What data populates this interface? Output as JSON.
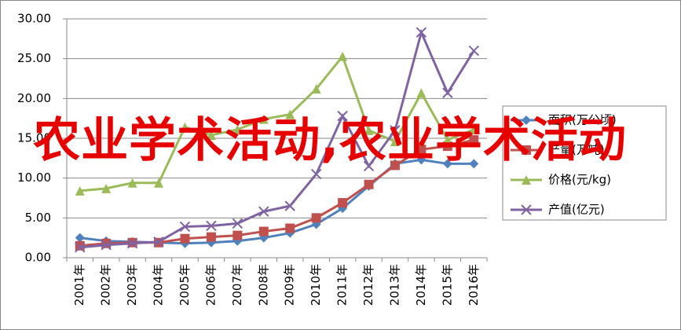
{
  "chart_data": {
    "type": "line",
    "categories": [
      "2001年",
      "2002年",
      "2003年",
      "2004年",
      "2005年",
      "2006年",
      "2007年",
      "2008年",
      "2009年",
      "2010年",
      "2011年",
      "2012年",
      "2013年",
      "2014年",
      "2015年",
      "2016年"
    ],
    "series": [
      {
        "name": "面积(万公顷)",
        "color": "#4f81bd",
        "marker": "diamond",
        "values": [
          2.5,
          2.1,
          2.0,
          1.9,
          1.8,
          1.9,
          2.1,
          2.5,
          3.1,
          4.2,
          6.2,
          9.0,
          11.8,
          12.3,
          11.8,
          11.8
        ]
      },
      {
        "name": "产量(万吨)",
        "color": "#c0504d",
        "marker": "square",
        "values": [
          1.5,
          1.8,
          1.9,
          1.9,
          2.4,
          2.6,
          2.8,
          3.3,
          3.7,
          5.0,
          6.9,
          9.2,
          11.6,
          13.6,
          14.0,
          14.8
        ]
      },
      {
        "name": "价格(元/kg)",
        "color": "#9bbb59",
        "marker": "triangle",
        "values": [
          8.4,
          8.7,
          9.4,
          9.4,
          16.4,
          15.4,
          16.1,
          17.4,
          18.0,
          21.2,
          25.3,
          16.0,
          14.6,
          20.7,
          14.8,
          16.1
        ]
      },
      {
        "name": "产值(亿元)",
        "color": "#8064a2",
        "marker": "x",
        "values": [
          1.3,
          1.6,
          1.8,
          2.0,
          3.9,
          4.0,
          4.3,
          5.8,
          6.5,
          10.5,
          17.8,
          11.5,
          16.0,
          28.3,
          20.7,
          26.0
        ]
      }
    ],
    "ylim": [
      0,
      30
    ],
    "yticks": [
      {
        "value": 0,
        "label": "0.00"
      },
      {
        "value": 5,
        "label": "5.00"
      },
      {
        "value": 10,
        "label": "10.00"
      },
      {
        "value": 15,
        "label": "15.00"
      },
      {
        "value": 20,
        "label": "20.00"
      },
      {
        "value": 25,
        "label": "25.00"
      },
      {
        "value": 30,
        "label": "30.00"
      }
    ],
    "grid": true,
    "legend": "right",
    "annotation": "农业学术活动,农业学术活动"
  }
}
